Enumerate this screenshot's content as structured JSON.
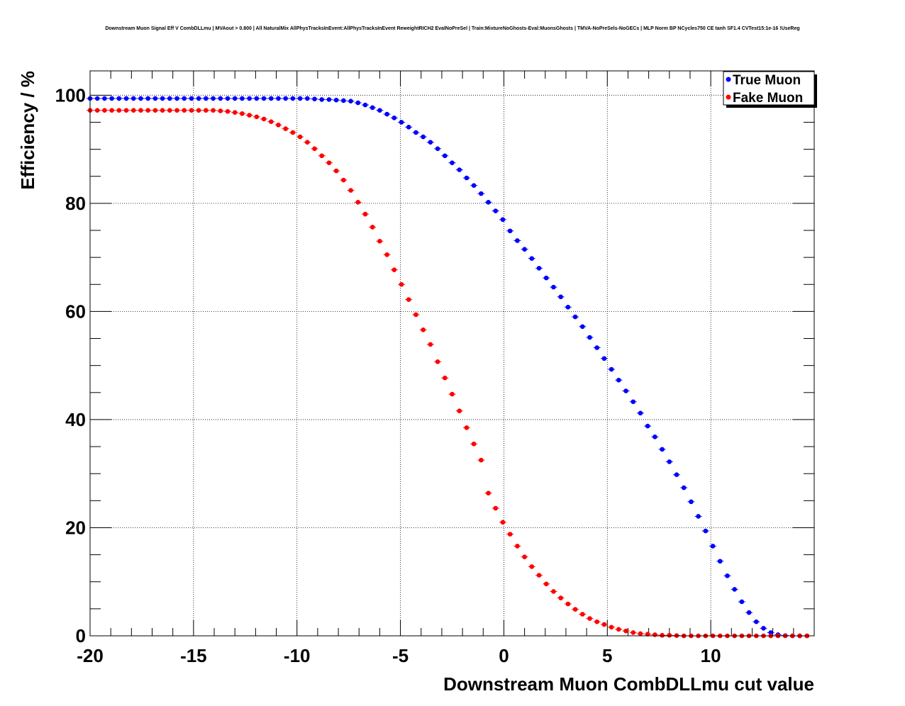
{
  "chart_data": {
    "type": "scatter",
    "title": "Downstream Muon Signal Eff V CombDLLmu | MVAout > 0.800 | All NaturalMix AllPhysTracksInEvent:AllPhysTracksInEvent ReweightRICH2 EvalNoPreSel | Train:MixtureNoGhosts-Eval:MuonsGhosts | TMVA-NoPreSels-NoGECs | MLP Norm BP NCycles750 CE tanh SF1.4 CVTest15:1e-16 !UseReg",
    "xlabel": "Downstream Muon CombDLLmu cut value",
    "ylabel": "Efficiency / %",
    "xlim": [
      -20,
      15
    ],
    "ylim": [
      0,
      104.5
    ],
    "xticks": [
      -20,
      -15,
      -10,
      -5,
      0,
      5,
      10
    ],
    "yticks": [
      0,
      20,
      40,
      60,
      80,
      100
    ],
    "grid": true,
    "legend_position": "top-right",
    "series": [
      {
        "name": "True Muon",
        "color": "#0000ff",
        "x": [
          -20,
          -19.65,
          -19.3,
          -18.95,
          -18.6,
          -18.25,
          -17.9,
          -17.55,
          -17.2,
          -16.85,
          -16.5,
          -16.15,
          -15.8,
          -15.45,
          -15.1,
          -14.75,
          -14.4,
          -14.05,
          -13.7,
          -13.35,
          -13,
          -12.65,
          -12.3,
          -11.95,
          -11.6,
          -11.25,
          -10.9,
          -10.55,
          -10.2,
          -9.85,
          -9.5,
          -9.15,
          -8.8,
          -8.45,
          -8.1,
          -7.75,
          -7.4,
          -7.05,
          -6.7,
          -6.35,
          -6,
          -5.65,
          -5.3,
          -4.95,
          -4.6,
          -4.25,
          -3.9,
          -3.55,
          -3.2,
          -2.85,
          -2.5,
          -2.15,
          -1.8,
          -1.45,
          -1.1,
          -0.75,
          -0.4,
          -0.05,
          0.3,
          0.65,
          1,
          1.35,
          1.7,
          2.05,
          2.4,
          2.75,
          3.1,
          3.45,
          3.8,
          4.15,
          4.5,
          4.85,
          5.2,
          5.55,
          5.9,
          6.25,
          6.6,
          6.95,
          7.3,
          7.65,
          8,
          8.35,
          8.7,
          9.05,
          9.4,
          9.75,
          10.1,
          10.45,
          10.8,
          11.15,
          11.5,
          11.85,
          12.2,
          12.55,
          12.9,
          13.25,
          13.6,
          13.95,
          14.3,
          14.65
        ],
        "y": [
          99.4,
          99.4,
          99.4,
          99.4,
          99.4,
          99.4,
          99.4,
          99.4,
          99.4,
          99.4,
          99.4,
          99.4,
          99.4,
          99.4,
          99.4,
          99.4,
          99.4,
          99.4,
          99.4,
          99.4,
          99.4,
          99.4,
          99.4,
          99.4,
          99.4,
          99.4,
          99.4,
          99.4,
          99.4,
          99.4,
          99.4,
          99.3,
          99.2,
          99.2,
          99.1,
          99,
          98.9,
          98.6,
          98.2,
          97.7,
          97.2,
          96.5,
          95.8,
          95,
          94.1,
          93.1,
          92.3,
          91.3,
          90.1,
          88.8,
          87.5,
          86.2,
          84.7,
          83.3,
          81.8,
          80.2,
          78.6,
          77,
          74.9,
          73.1,
          71.5,
          69.8,
          68,
          66.2,
          64.5,
          62.7,
          60.8,
          59,
          57.2,
          55.2,
          53.3,
          51.3,
          49.3,
          47.3,
          45.3,
          43.3,
          41.2,
          38.8,
          36.8,
          34.5,
          32.2,
          29.8,
          27.4,
          24.8,
          22.1,
          19.4,
          16.6,
          13.8,
          11.1,
          8.6,
          6.3,
          4.3,
          2.6,
          1.4,
          0.6,
          0.2,
          0.05,
          0,
          0,
          0
        ]
      },
      {
        "name": "Fake Muon",
        "color": "#ff0000",
        "x": [
          -20,
          -19.65,
          -19.3,
          -18.95,
          -18.6,
          -18.25,
          -17.9,
          -17.55,
          -17.2,
          -16.85,
          -16.5,
          -16.15,
          -15.8,
          -15.45,
          -15.1,
          -14.75,
          -14.4,
          -14.05,
          -13.7,
          -13.35,
          -13,
          -12.65,
          -12.3,
          -11.95,
          -11.6,
          -11.25,
          -10.9,
          -10.55,
          -10.2,
          -9.85,
          -9.5,
          -9.15,
          -8.8,
          -8.45,
          -8.1,
          -7.75,
          -7.4,
          -7.05,
          -6.7,
          -6.35,
          -6,
          -5.65,
          -5.3,
          -4.95,
          -4.6,
          -4.25,
          -3.9,
          -3.55,
          -3.2,
          -2.85,
          -2.5,
          -2.15,
          -1.8,
          -1.45,
          -1.1,
          -0.75,
          -0.4,
          -0.05,
          0.3,
          0.65,
          1,
          1.35,
          1.7,
          2.05,
          2.4,
          2.75,
          3.1,
          3.45,
          3.8,
          4.15,
          4.5,
          4.85,
          5.2,
          5.55,
          5.9,
          6.25,
          6.6,
          6.95,
          7.3,
          7.65,
          8,
          8.35,
          8.7,
          9.05,
          9.4,
          9.75,
          10.1,
          10.45,
          10.8,
          11.15,
          11.5,
          11.85,
          12.2,
          12.55,
          12.9,
          13.25,
          13.6,
          13.95,
          14.3,
          14.65
        ],
        "y": [
          97.2,
          97.2,
          97.2,
          97.2,
          97.2,
          97.2,
          97.2,
          97.2,
          97.2,
          97.2,
          97.2,
          97.2,
          97.2,
          97.2,
          97.2,
          97.2,
          97.2,
          97.2,
          97.1,
          97,
          96.8,
          96.6,
          96.3,
          96,
          95.6,
          95.1,
          94.5,
          93.8,
          93.1,
          92.3,
          91.3,
          90.1,
          88.8,
          87.5,
          86,
          84.3,
          82.4,
          80.2,
          78,
          75.6,
          73,
          70.5,
          67.7,
          65,
          62.2,
          59.4,
          56.6,
          53.9,
          50.7,
          47.7,
          44.7,
          41.6,
          38.5,
          35.5,
          32.5,
          26.4,
          23.6,
          21,
          18.8,
          16.6,
          14.6,
          12.8,
          11.2,
          9.6,
          8.2,
          7,
          5.9,
          4.9,
          4,
          3.2,
          2.6,
          2.1,
          1.6,
          1.2,
          0.9,
          0.6,
          0.4,
          0.3,
          0.2,
          0.1,
          0.1,
          0.05,
          0,
          0,
          0,
          0,
          0,
          0,
          0,
          0,
          0,
          0,
          0,
          0,
          0,
          0,
          0,
          0,
          0,
          0
        ]
      }
    ]
  }
}
